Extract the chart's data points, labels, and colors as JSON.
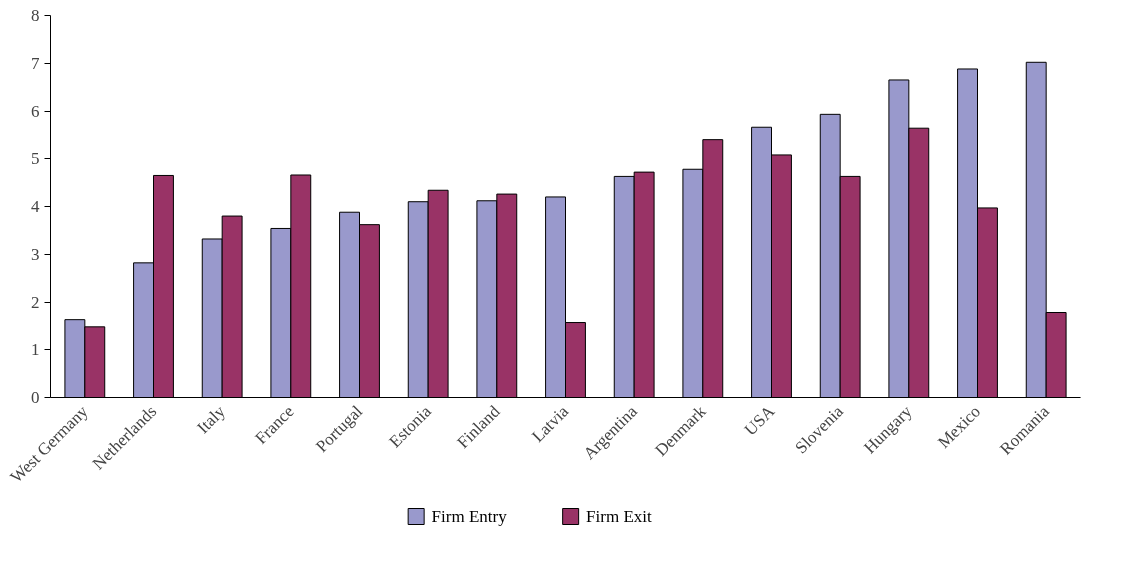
{
  "chart_data": {
    "type": "bar",
    "categories": [
      "West Germany",
      "Netherlands",
      "Italy",
      "France",
      "Portugal",
      "Estonia",
      "Finland",
      "Latvia",
      "Argentina",
      "Denmark",
      "USA",
      "Slovenia",
      "Hungary",
      "Mexico",
      "Romania"
    ],
    "series": [
      {
        "name": "Firm Entry",
        "color": "#9999cc",
        "values": [
          1.63,
          2.82,
          3.32,
          3.54,
          3.88,
          4.1,
          4.12,
          4.2,
          4.63,
          4.78,
          5.66,
          5.93,
          6.65,
          6.88,
          7.02
        ]
      },
      {
        "name": "Firm Exit",
        "color": "#993366",
        "values": [
          1.48,
          4.65,
          3.8,
          4.66,
          3.62,
          4.34,
          4.26,
          1.57,
          4.72,
          5.4,
          5.08,
          4.63,
          5.64,
          3.97,
          1.78
        ]
      }
    ],
    "ylim": [
      0,
      8
    ],
    "yticks": [
      0,
      1,
      2,
      3,
      4,
      5,
      6,
      7,
      8
    ],
    "grid": false,
    "legend": "bottom"
  }
}
